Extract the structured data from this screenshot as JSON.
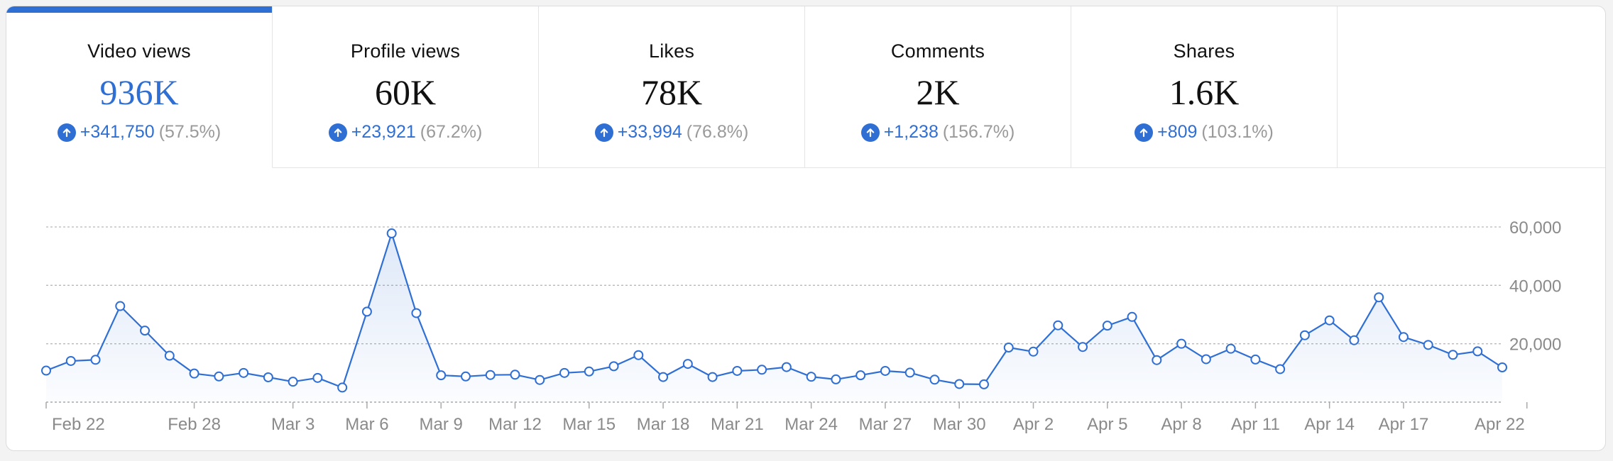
{
  "colors": {
    "accent": "#2f6fd4",
    "muted": "#9a9a9a",
    "grid": "#b8b8b8"
  },
  "tabs": [
    {
      "label": "Video views",
      "value": "936K",
      "delta": "+341,750",
      "pct": "(57.5%)",
      "icon": "arrow-up-icon",
      "active": true
    },
    {
      "label": "Profile views",
      "value": "60K",
      "delta": "+23,921",
      "pct": "(67.2%)",
      "icon": "arrow-up-icon",
      "active": false
    },
    {
      "label": "Likes",
      "value": "78K",
      "delta": "+33,994",
      "pct": "(76.8%)",
      "icon": "arrow-up-icon",
      "active": false
    },
    {
      "label": "Comments",
      "value": "2K",
      "delta": "+1,238",
      "pct": "(156.7%)",
      "icon": "arrow-up-icon",
      "active": false
    },
    {
      "label": "Shares",
      "value": "1.6K",
      "delta": "+809",
      "pct": "(103.1%)",
      "icon": "arrow-up-icon",
      "active": false
    }
  ],
  "chart_data": {
    "type": "area",
    "title": "",
    "xlabel": "",
    "ylabel": "",
    "x_range": [
      "Feb 22",
      "Apr 22"
    ],
    "ylim": [
      0,
      60000
    ],
    "yticks": [
      20000,
      40000,
      60000
    ],
    "ytick_labels": [
      "20,000",
      "40,000",
      "60,000"
    ],
    "xticks": [
      "Feb 22",
      "Feb 28",
      "Mar 3",
      "Mar 6",
      "Mar 9",
      "Mar 12",
      "Mar 15",
      "Mar 18",
      "Mar 21",
      "Mar 24",
      "Mar 27",
      "Mar 30",
      "Apr 2",
      "Apr 5",
      "Apr 8",
      "Apr 11",
      "Apr 14",
      "Apr 17",
      "Apr 22"
    ],
    "grid": true,
    "legend": "none",
    "y_axis_position": "right",
    "series": [
      {
        "values": [
          10800,
          14100,
          14500,
          32900,
          24500,
          15900,
          9800,
          8800,
          10000,
          8500,
          7000,
          8300,
          5000,
          31000,
          57800,
          30500,
          9200,
          8800,
          9300,
          9400,
          7600,
          10000,
          10500,
          12300,
          16100,
          8600,
          13100,
          8600,
          10700,
          11100,
          12000,
          8700,
          7800,
          9200,
          10700,
          10100,
          7700,
          6200,
          6100,
          18700,
          17300,
          26300,
          18900,
          26200,
          29200,
          14400,
          20000,
          14700,
          18300,
          14600,
          11300,
          22900,
          28000,
          21200,
          35900,
          22300,
          19600,
          16200,
          17400,
          11900
        ]
      }
    ]
  }
}
